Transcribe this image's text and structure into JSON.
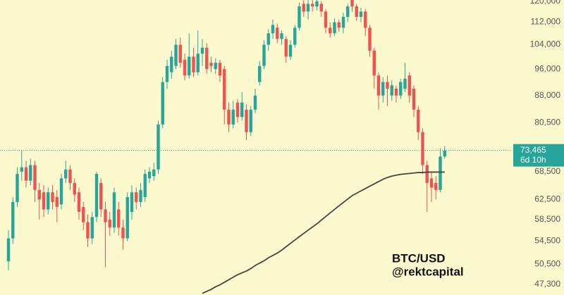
{
  "chart_data": {
    "type": "candlestick",
    "log_scale": true,
    "grid": false,
    "up_color": "#26a69a",
    "down_color": "#ef5350",
    "ylim": [
      45650,
      120500
    ],
    "yticks": [
      {
        "value": 47300,
        "label": "47,300"
      },
      {
        "value": 50500,
        "label": "50,500"
      },
      {
        "value": 54500,
        "label": "54,500"
      },
      {
        "value": 58500,
        "label": "58,500"
      },
      {
        "value": 62500,
        "label": "62,500"
      },
      {
        "value": 68500,
        "label": "68,500"
      },
      {
        "value": 80500,
        "label": "80,500"
      },
      {
        "value": 88000,
        "label": "88,000"
      },
      {
        "value": 96000,
        "label": "96,000"
      },
      {
        "value": 104000,
        "label": "104,000"
      },
      {
        "value": 112000,
        "label": "112,000"
      },
      {
        "value": 120000,
        "label": "120,000"
      }
    ],
    "open": [
      51000,
      55000,
      62000,
      68500,
      69500,
      66500,
      70000,
      64500,
      64000,
      60500,
      64000,
      63000,
      61500,
      67000,
      69000,
      66000,
      64000,
      61000,
      58000,
      55000,
      59000,
      66000,
      60500,
      58500,
      57000,
      60500,
      57000,
      55000,
      60000,
      64000,
      62000,
      63000,
      67000,
      67500,
      69000,
      80000,
      92000,
      95000,
      97000,
      104000,
      99000,
      94000,
      100000,
      95000,
      101000,
      103000,
      98000,
      96000,
      98000,
      96000,
      84000,
      80000,
      86000,
      82000,
      84000,
      78000,
      84000,
      92000,
      97000,
      104000,
      108000,
      110000,
      106000,
      106000,
      100000,
      104000,
      110000,
      119000,
      116000,
      119000,
      118000,
      119000,
      116000,
      110000,
      108000,
      112000,
      110000,
      114000,
      122000,
      118000,
      114000,
      116000,
      110000,
      102000,
      94000,
      88000,
      92000,
      88000,
      90000,
      88000,
      90000,
      94000,
      90000,
      84000,
      78000,
      70000,
      67000,
      66000,
      64500,
      72000
    ],
    "high": [
      56500,
      63000,
      69500,
      73500,
      71000,
      71500,
      71000,
      66000,
      65500,
      65000,
      65500,
      64500,
      68000,
      71000,
      70000,
      67000,
      65000,
      62000,
      59500,
      60000,
      68500,
      67000,
      62000,
      60000,
      65000,
      62000,
      58500,
      64000,
      65500,
      65000,
      66000,
      69000,
      69500,
      70500,
      81000,
      93500,
      99000,
      102000,
      106000,
      106500,
      101000,
      108000,
      103000,
      109000,
      106000,
      104500,
      100000,
      99500,
      99000,
      97000,
      86000,
      86500,
      87000,
      89000,
      85500,
      85000,
      90000,
      98500,
      105500,
      109500,
      113000,
      111500,
      109000,
      107000,
      105500,
      111000,
      119500,
      121000,
      120500,
      121000,
      121500,
      120000,
      117000,
      112000,
      113500,
      113000,
      115500,
      119000,
      124000,
      119000,
      117500,
      117000,
      111000,
      103000,
      95000,
      93500,
      94000,
      92500,
      91000,
      93000,
      98000,
      95000,
      91000,
      85000,
      79000,
      71000,
      68500,
      67500,
      74000,
      74500
    ],
    "low": [
      49500,
      54000,
      61000,
      66500,
      65000,
      65500,
      62000,
      58500,
      59000,
      59500,
      60500,
      58000,
      60500,
      66000,
      64500,
      62000,
      58500,
      56500,
      53500,
      54000,
      58000,
      59000,
      50000,
      55500,
      56000,
      55500,
      53000,
      54500,
      58500,
      60500,
      61000,
      62000,
      66000,
      66500,
      68000,
      79000,
      90000,
      93000,
      96000,
      96500,
      92500,
      93000,
      93500,
      94000,
      97000,
      94500,
      95000,
      94500,
      92000,
      80000,
      78000,
      79000,
      80500,
      81000,
      76000,
      77000,
      83000,
      91000,
      96000,
      102000,
      106000,
      104500,
      104000,
      98000,
      99000,
      103000,
      109000,
      114000,
      113000,
      116000,
      116500,
      114000,
      108000,
      106500,
      107000,
      108500,
      108000,
      112000,
      116000,
      112500,
      112000,
      107000,
      100000,
      90000,
      84000,
      86000,
      85000,
      86500,
      86000,
      87000,
      89000,
      86000,
      82000,
      76000,
      68000,
      60000,
      62000,
      62500,
      64000,
      71500
    ],
    "close": [
      55000,
      62000,
      68000,
      69500,
      66500,
      70000,
      64500,
      62500,
      60500,
      64000,
      62000,
      61000,
      67000,
      69000,
      66000,
      63500,
      60000,
      58000,
      55000,
      59000,
      68000,
      60500,
      58000,
      57000,
      64000,
      57000,
      55000,
      63000,
      64000,
      62000,
      64500,
      68000,
      68500,
      69000,
      80000,
      92000,
      97000,
      100000,
      104000,
      98000,
      94000,
      100000,
      95000,
      101000,
      103000,
      96000,
      97000,
      98000,
      94000,
      84000,
      80000,
      84000,
      82000,
      86000,
      78000,
      84000,
      88000,
      97000,
      104000,
      108000,
      111000,
      106000,
      108000,
      100000,
      104000,
      110000,
      118000,
      116000,
      119000,
      118000,
      120000,
      116000,
      110000,
      108000,
      112000,
      110000,
      114000,
      118000,
      118000,
      114000,
      116000,
      110000,
      102000,
      94000,
      88000,
      92000,
      90000,
      91000,
      88000,
      92000,
      93000,
      88000,
      84000,
      78000,
      70000,
      66000,
      65000,
      64500,
      72000,
      73465
    ],
    "ma": {
      "color": "#444444",
      "values": [
        null,
        null,
        null,
        null,
        null,
        null,
        null,
        null,
        null,
        null,
        null,
        null,
        null,
        null,
        null,
        null,
        null,
        null,
        null,
        null,
        null,
        null,
        null,
        null,
        null,
        null,
        null,
        null,
        null,
        null,
        null,
        null,
        null,
        null,
        null,
        null,
        null,
        null,
        null,
        null,
        null,
        null,
        null,
        null,
        45900,
        46200,
        46500,
        46900,
        47200,
        47600,
        48000,
        48400,
        48800,
        49100,
        49400,
        49800,
        50300,
        50700,
        51100,
        51600,
        52000,
        52400,
        52900,
        53500,
        54100,
        54700,
        55300,
        55900,
        56500,
        57100,
        57700,
        58400,
        59100,
        59800,
        60500,
        61200,
        61900,
        62600,
        63300,
        63800,
        64300,
        64800,
        65300,
        65800,
        66300,
        66800,
        67200,
        67500,
        67700,
        67900,
        68000,
        68100,
        68200,
        68300,
        68300,
        68400,
        68400,
        68400,
        68400,
        68400
      ]
    },
    "last_price": {
      "value": 73465,
      "label": "73,465"
    },
    "countdown": "6d 10h",
    "annotations": [
      "BTC/USD",
      "@rektcapital"
    ]
  }
}
